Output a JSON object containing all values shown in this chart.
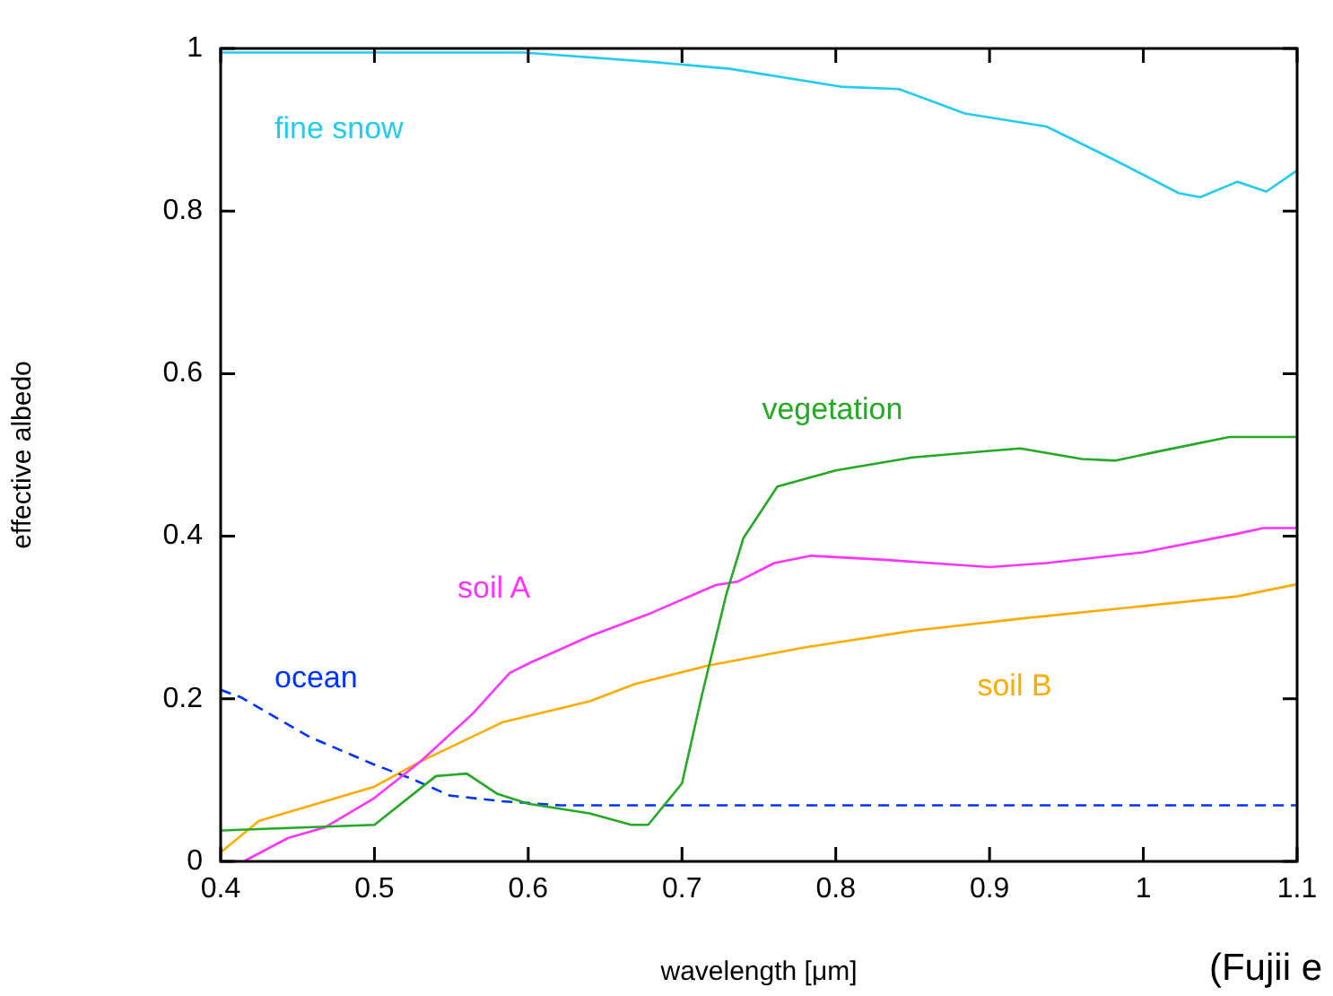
{
  "chart_data": {
    "type": "line",
    "xlabel": "wavelength [μm]",
    "ylabel": "effective albedo",
    "xlim": [
      0.4,
      1.1
    ],
    "xticks": [
      0.4,
      0.5,
      0.6,
      0.7,
      0.8,
      0.9,
      1,
      1.1
    ],
    "ylim": [
      0,
      1
    ],
    "yticks": [
      0,
      0.2,
      0.4,
      0.6,
      0.8,
      1
    ],
    "grid": false,
    "legend": false,
    "marker": "none",
    "annotations": [
      "(Fujii e"
    ],
    "series": [
      {
        "name": "fine snow",
        "color": "#22ccf0",
        "line_style": "solid",
        "x": [
          0.4,
          0.597,
          0.683,
          0.731,
          0.803,
          0.841,
          0.884,
          0.937,
          0.98,
          1.023,
          1.037,
          1.061,
          1.08,
          1.1
        ],
        "values": [
          0.995,
          0.995,
          0.983,
          0.975,
          0.953,
          0.95,
          0.92,
          0.904,
          0.864,
          0.822,
          0.817,
          0.836,
          0.824,
          0.85
        ]
      },
      {
        "name": "vegetation",
        "color": "#22aa22",
        "line_style": "solid",
        "x": [
          0.4,
          0.5,
          0.54,
          0.56,
          0.58,
          0.6,
          0.64,
          0.667,
          0.678,
          0.7,
          0.713,
          0.729,
          0.74,
          0.762,
          0.8,
          0.85,
          0.9,
          0.92,
          0.96,
          0.982,
          1.009,
          1.056,
          1.1
        ],
        "values": [
          0.038,
          0.045,
          0.105,
          0.108,
          0.083,
          0.071,
          0.059,
          0.045,
          0.045,
          0.096,
          0.205,
          0.33,
          0.398,
          0.461,
          0.481,
          0.497,
          0.505,
          0.508,
          0.495,
          0.493,
          0.504,
          0.522,
          0.522
        ]
      },
      {
        "name": "soil A",
        "color": "#ff33ff",
        "line_style": "solid",
        "x": [
          0.415,
          0.444,
          0.468,
          0.5,
          0.53,
          0.564,
          0.588,
          0.602,
          0.64,
          0.678,
          0.722,
          0.736,
          0.76,
          0.784,
          0.832,
          0.9,
          0.937,
          0.999,
          1.061,
          1.078,
          1.1
        ],
        "values": [
          0,
          0.029,
          0.042,
          0.078,
          0.123,
          0.182,
          0.232,
          0.245,
          0.277,
          0.304,
          0.34,
          0.344,
          0.367,
          0.376,
          0.371,
          0.362,
          0.367,
          0.38,
          0.403,
          0.41,
          0.41
        ]
      },
      {
        "name": "ocean",
        "color": "#0033ff",
        "line_style": "dashed",
        "x": [
          0.4,
          0.413,
          0.458,
          0.5,
          0.525,
          0.549,
          0.583,
          0.621,
          1.1
        ],
        "values": [
          0.211,
          0.202,
          0.153,
          0.119,
          0.101,
          0.081,
          0.074,
          0.069,
          0.069
        ]
      },
      {
        "name": "soil B",
        "color": "#ffaa00",
        "line_style": "solid",
        "x": [
          0.4,
          0.425,
          0.5,
          0.53,
          0.583,
          0.64,
          0.669,
          0.717,
          0.779,
          0.851,
          0.922,
          0.994,
          1.061,
          1.1
        ],
        "values": [
          0.011,
          0.05,
          0.092,
          0.123,
          0.171,
          0.197,
          0.218,
          0.241,
          0.263,
          0.284,
          0.299,
          0.313,
          0.326,
          0.341
        ]
      }
    ]
  }
}
